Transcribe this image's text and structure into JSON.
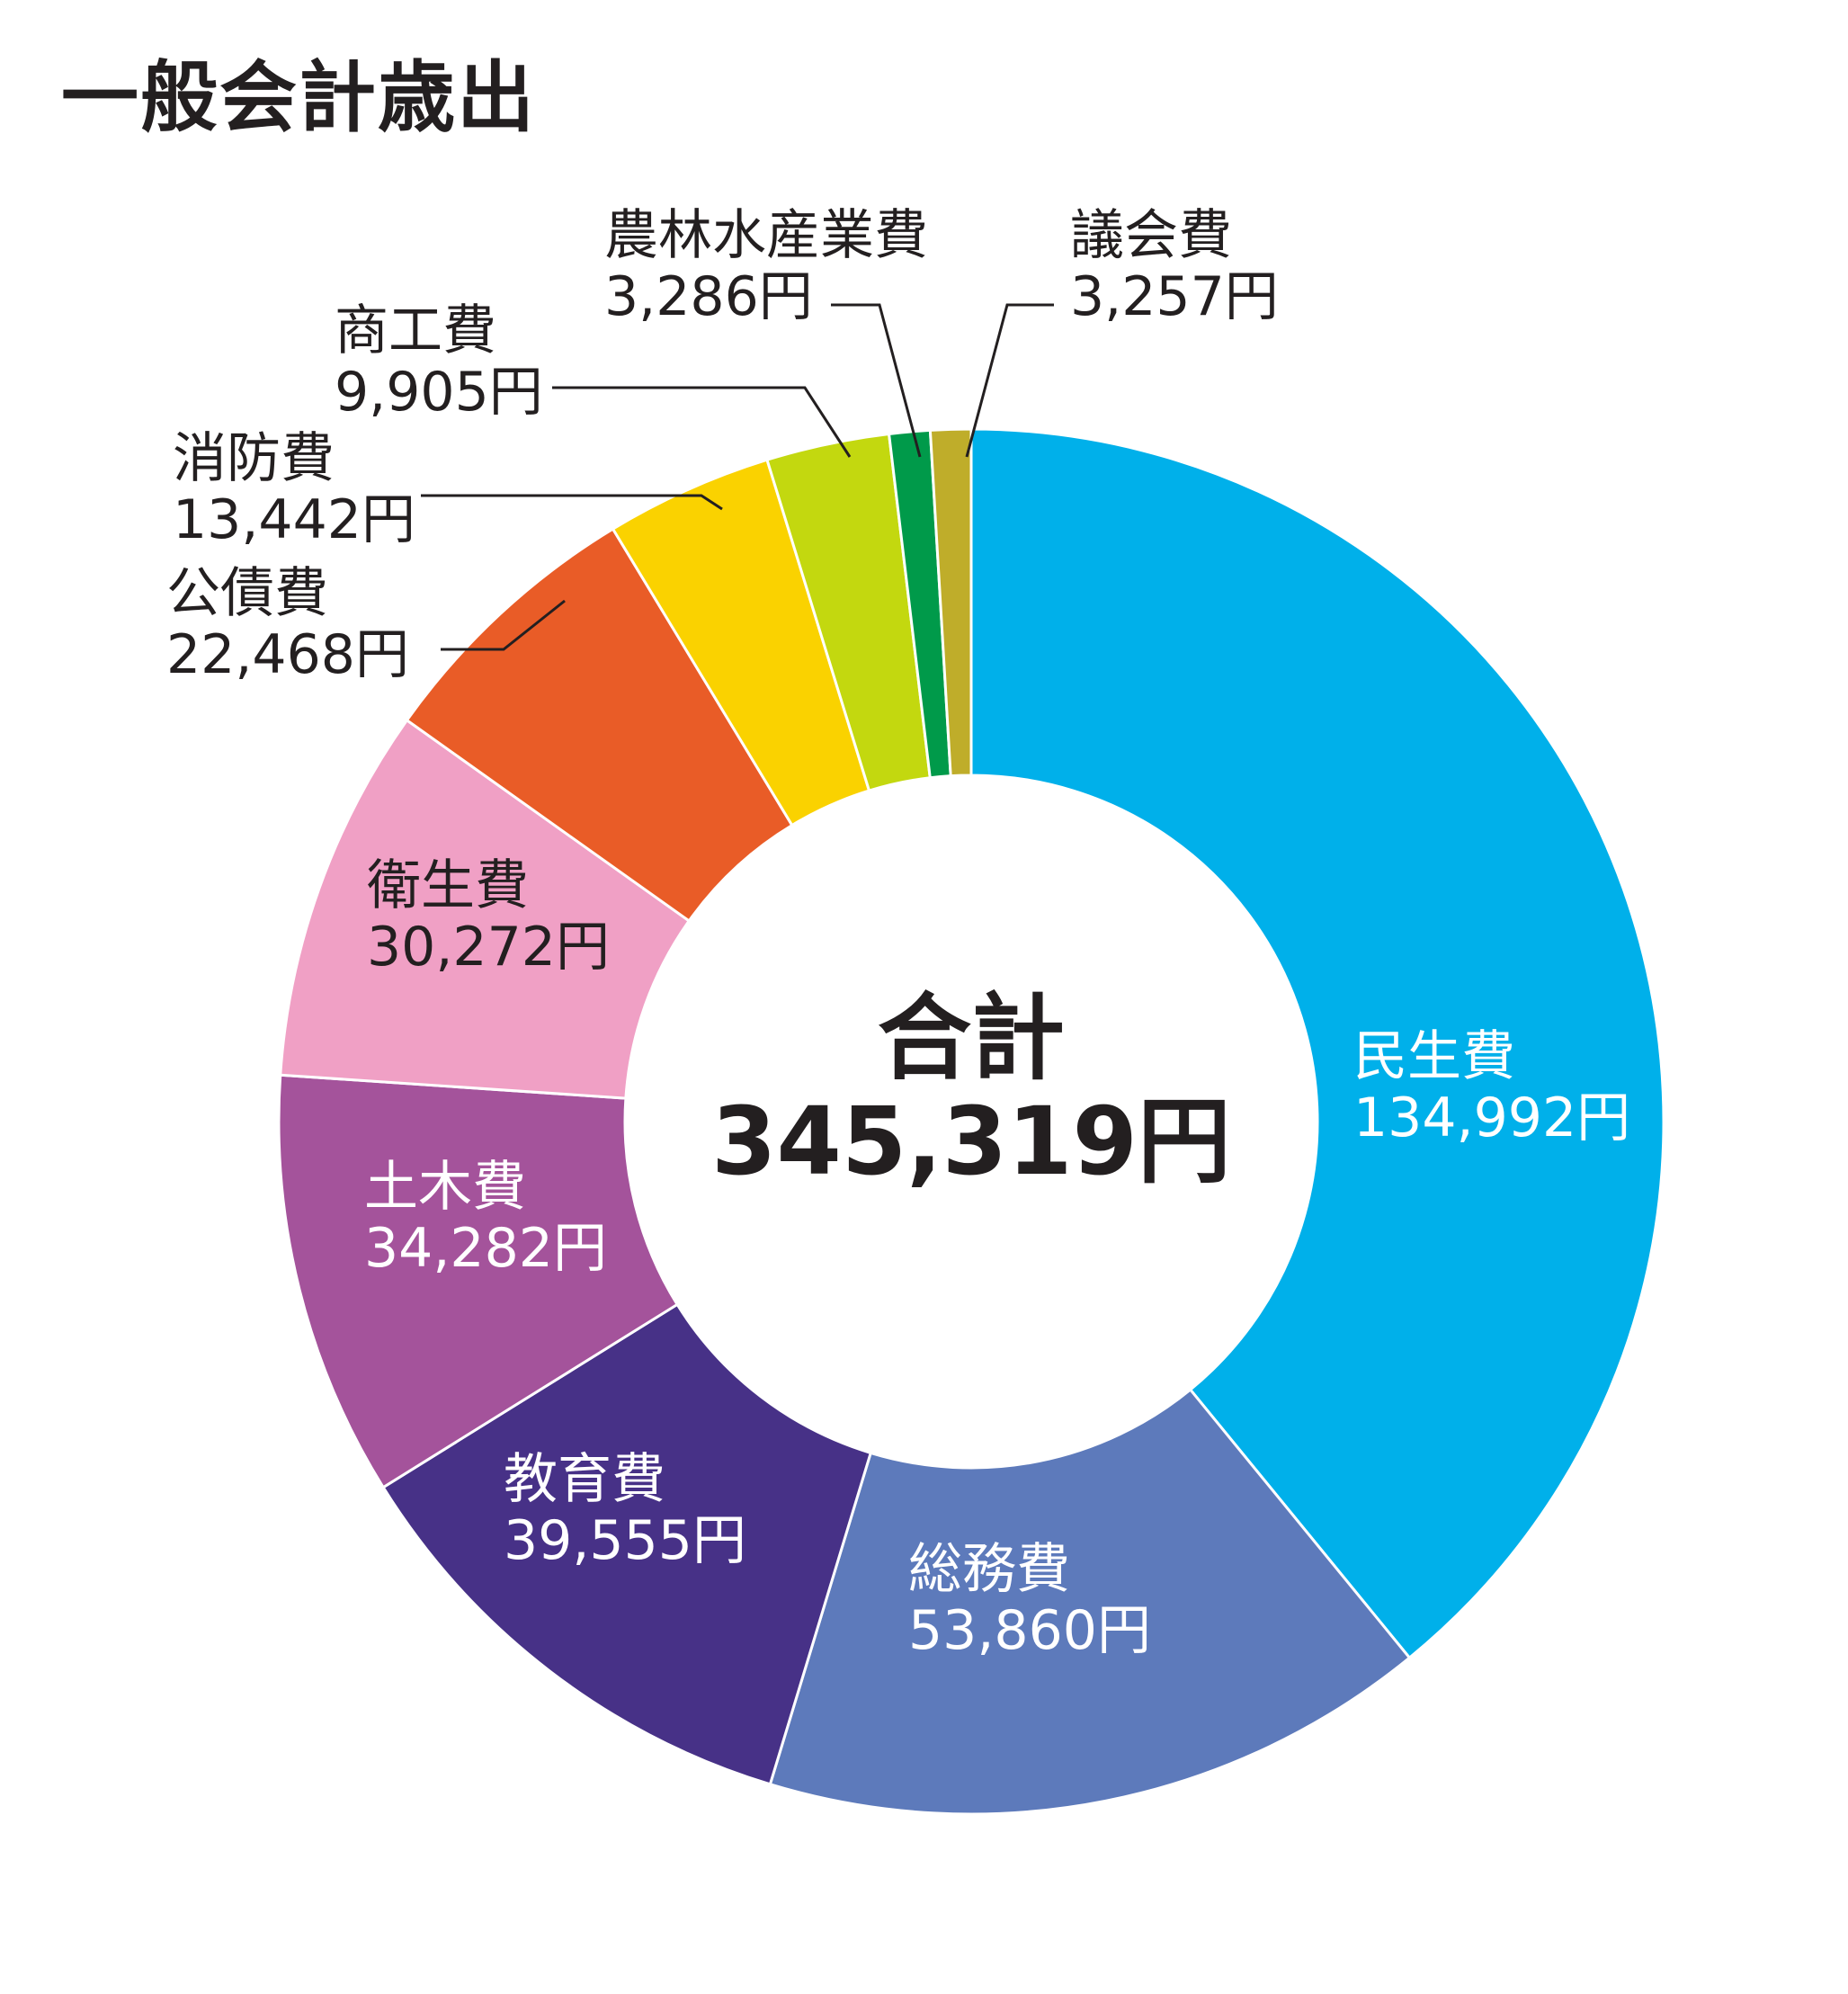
{
  "chart_data": {
    "type": "pie",
    "title": "一般会計歳出",
    "center_label": "合計",
    "center_value": "345,319円",
    "unit": "円",
    "categories": [
      "民生費",
      "総務費",
      "教育費",
      "土木費",
      "衛生費",
      "公債費",
      "消防費",
      "商工費",
      "農林水産業費",
      "議会費"
    ],
    "values": [
      134992,
      53860,
      39555,
      34282,
      30272,
      22468,
      13442,
      9905,
      3286,
      3257
    ],
    "value_labels": [
      "134,992円",
      "53,860円",
      "39,555円",
      "34,282円",
      "30,272円",
      "22,468円",
      "13,442円",
      "9,905円",
      "3,286円",
      "3,257円"
    ],
    "colors": [
      "#00b0ea",
      "#5d7abb",
      "#473187",
      "#a4539b",
      "#f0a0c5",
      "#e95c27",
      "#fad200",
      "#c3d80f",
      "#009a4a",
      "#bfad2a"
    ],
    "label_colors": [
      "#ffffff",
      "#ffffff",
      "#ffffff",
      "#ffffff",
      "#231f20",
      "#231f20",
      "#231f20",
      "#231f20",
      "#231f20",
      "#231f20"
    ],
    "legend": "none"
  }
}
